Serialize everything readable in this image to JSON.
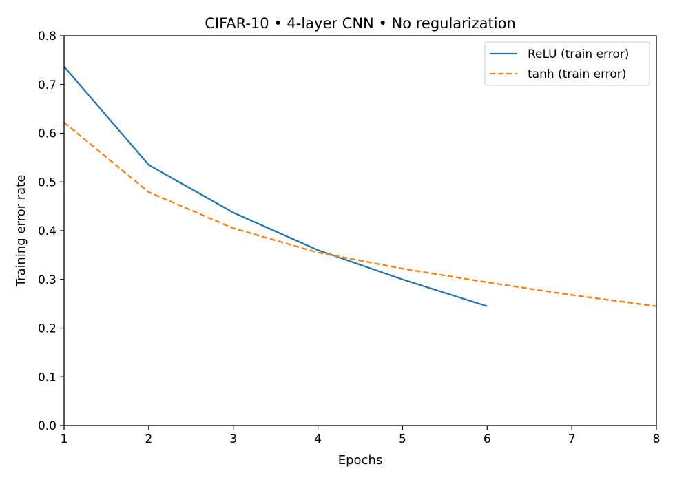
{
  "chart_data": {
    "type": "line",
    "title": "CIFAR-10 • 4-layer CNN • No regularization",
    "xlabel": "Epochs",
    "ylabel": "Training error rate",
    "xlim": [
      1,
      8
    ],
    "ylim": [
      0,
      0.8
    ],
    "xticks": [
      1,
      2,
      3,
      4,
      5,
      6,
      7,
      8
    ],
    "yticks": [
      0.0,
      0.1,
      0.2,
      0.3,
      0.4,
      0.5,
      0.6,
      0.7,
      0.8
    ],
    "ytick_labels": [
      "0.0",
      "0.1",
      "0.2",
      "0.3",
      "0.4",
      "0.5",
      "0.6",
      "0.7",
      "0.8"
    ],
    "grid": false,
    "legend_position": "top-right",
    "series": [
      {
        "name": "ReLU (train error)",
        "color": "#1f77b4",
        "style": "solid",
        "x": [
          1,
          2,
          3,
          4,
          5,
          6
        ],
        "y": [
          0.737,
          0.535,
          0.437,
          0.36,
          0.3,
          0.245
        ]
      },
      {
        "name": "tanh (train error)",
        "color": "#ff7f0e",
        "style": "dashed",
        "x": [
          1,
          2,
          3,
          4,
          5,
          6,
          7,
          8
        ],
        "y": [
          0.622,
          0.479,
          0.405,
          0.355,
          0.322,
          0.294,
          0.268,
          0.245
        ]
      }
    ]
  }
}
